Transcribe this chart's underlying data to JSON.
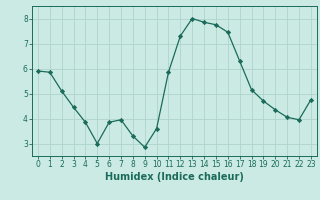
{
  "x": [
    0,
    1,
    2,
    3,
    4,
    5,
    6,
    7,
    8,
    9,
    10,
    11,
    12,
    13,
    14,
    15,
    16,
    17,
    18,
    19,
    20,
    21,
    22,
    23
  ],
  "y": [
    5.9,
    5.85,
    5.1,
    4.45,
    3.85,
    3.0,
    3.85,
    3.95,
    3.3,
    2.85,
    3.6,
    5.85,
    7.3,
    8.0,
    7.85,
    7.75,
    7.45,
    6.3,
    5.15,
    4.7,
    4.35,
    4.05,
    3.95,
    4.75
  ],
  "line_color": "#1a6b5a",
  "marker": "D",
  "marker_size": 2.2,
  "bg_color": "#cceae4",
  "grid_color": "#afd4cc",
  "xlabel": "Humidex (Indice chaleur)",
  "ylim": [
    2.5,
    8.5
  ],
  "xlim": [
    -0.5,
    23.5
  ],
  "yticks": [
    3,
    4,
    5,
    6,
    7,
    8
  ],
  "xticks": [
    0,
    1,
    2,
    3,
    4,
    5,
    6,
    7,
    8,
    9,
    10,
    11,
    12,
    13,
    14,
    15,
    16,
    17,
    18,
    19,
    20,
    21,
    22,
    23
  ],
  "tick_fontsize": 5.5,
  "xlabel_fontsize": 7.0
}
